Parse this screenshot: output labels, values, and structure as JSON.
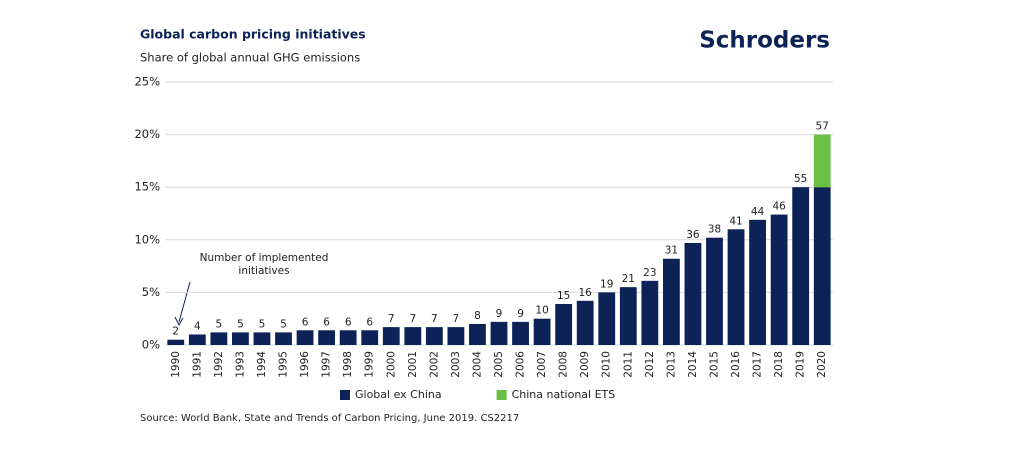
{
  "logo": "Schroders",
  "chart_data": {
    "type": "stacked_bar",
    "title": "Global carbon pricing initiatives",
    "subtitle": "Share of global annual GHG emissions",
    "categories": [
      "1990",
      "1991",
      "1992",
      "1993",
      "1994",
      "1995",
      "1996",
      "1997",
      "1998",
      "1999",
      "2000",
      "2001",
      "2002",
      "2003",
      "2004",
      "2005",
      "2006",
      "2007",
      "2008",
      "2009",
      "2010",
      "2011",
      "2012",
      "2013",
      "2014",
      "2015",
      "2016",
      "2017",
      "2018",
      "2019",
      "2020"
    ],
    "series": [
      {
        "name": "Global ex China",
        "color": "#0d2357",
        "values": [
          0.5,
          1.0,
          1.2,
          1.2,
          1.2,
          1.2,
          1.4,
          1.4,
          1.4,
          1.4,
          1.7,
          1.7,
          1.7,
          1.7,
          2.0,
          2.2,
          2.2,
          2.5,
          3.9,
          4.2,
          5.0,
          5.5,
          6.1,
          8.2,
          9.7,
          10.2,
          11.0,
          11.9,
          12.4,
          15.0,
          15.0
        ]
      },
      {
        "name": "China national ETS",
        "color": "#6abf45",
        "values": [
          null,
          null,
          null,
          null,
          null,
          null,
          null,
          null,
          null,
          null,
          null,
          null,
          null,
          null,
          null,
          null,
          null,
          null,
          null,
          null,
          null,
          null,
          null,
          null,
          null,
          null,
          null,
          null,
          null,
          null,
          5.0
        ]
      }
    ],
    "initiative_counts": [
      2,
      4,
      5,
      5,
      5,
      5,
      6,
      6,
      6,
      6,
      7,
      7,
      7,
      7,
      8,
      9,
      9,
      10,
      15,
      16,
      19,
      21,
      23,
      31,
      36,
      38,
      41,
      44,
      46,
      55,
      57
    ],
    "annotation": [
      "Number of implemented",
      "initiatives"
    ],
    "ylim": [
      0,
      25
    ],
    "yticks": [
      {
        "value": 0,
        "label": "0%"
      },
      {
        "value": 5,
        "label": "5%"
      },
      {
        "value": 10,
        "label": "10%"
      },
      {
        "value": 15,
        "label": "15%"
      },
      {
        "value": 20,
        "label": "20%"
      },
      {
        "value": 25,
        "label": "25%"
      }
    ],
    "grid": true,
    "legend": "bottom",
    "source": "Source: World Bank, State and Trends of Carbon Pricing, June 2019. CS2217"
  }
}
